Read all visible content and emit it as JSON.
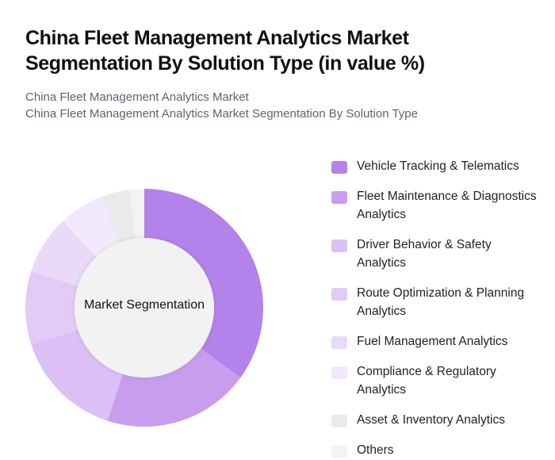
{
  "header": {
    "title": "China Fleet Management Analytics Market Segmentation By Solution Type (in value %)",
    "subtitle_line1": "China Fleet Management Analytics Market",
    "subtitle_line2": "China Fleet Management Analytics Market Segmentation By Solution Type"
  },
  "chart": {
    "center_label": "Market Segmentation"
  },
  "legend": {
    "items": [
      {
        "label": "Vehicle Tracking & Telematics",
        "color": "#B482EB"
      },
      {
        "label": "Fleet Maintenance & Diagnostics Analytics",
        "color": "#C89DEE"
      },
      {
        "label": "Driver Behavior & Safety Analytics",
        "color": "#DAC0F5"
      },
      {
        "label": "Route Optimization & Planning Analytics",
        "color": "#E2CCF6"
      },
      {
        "label": "Fuel Management Analytics",
        "color": "#E9DAF8"
      },
      {
        "label": "Compliance & Regulatory Analytics",
        "color": "#F2EAFC"
      },
      {
        "label": "Asset & Inventory Analytics",
        "color": "#EAEAEA"
      },
      {
        "label": "Others",
        "color": "#F3F3F3"
      }
    ]
  },
  "chart_data": {
    "type": "pie",
    "subtype": "donut",
    "title": "China Fleet Management Analytics Market Segmentation By Solution Type (in value %)",
    "center_label": "Market Segmentation",
    "categories": [
      "Vehicle Tracking & Telematics",
      "Fleet Maintenance & Diagnostics Analytics",
      "Driver Behavior & Safety Analytics",
      "Route Optimization & Planning Analytics",
      "Fuel Management Analytics",
      "Compliance & Regulatory Analytics",
      "Asset & Inventory Analytics",
      "Others"
    ],
    "values": [
      35,
      20,
      15,
      10,
      8,
      6,
      4,
      2
    ],
    "colors": [
      "#B482EB",
      "#C89DEE",
      "#DAC0F5",
      "#E2CCF6",
      "#E9DAF8",
      "#F2EAFC",
      "#EAEAEA",
      "#F3F3F3"
    ],
    "unit": "%",
    "legend_position": "right"
  }
}
